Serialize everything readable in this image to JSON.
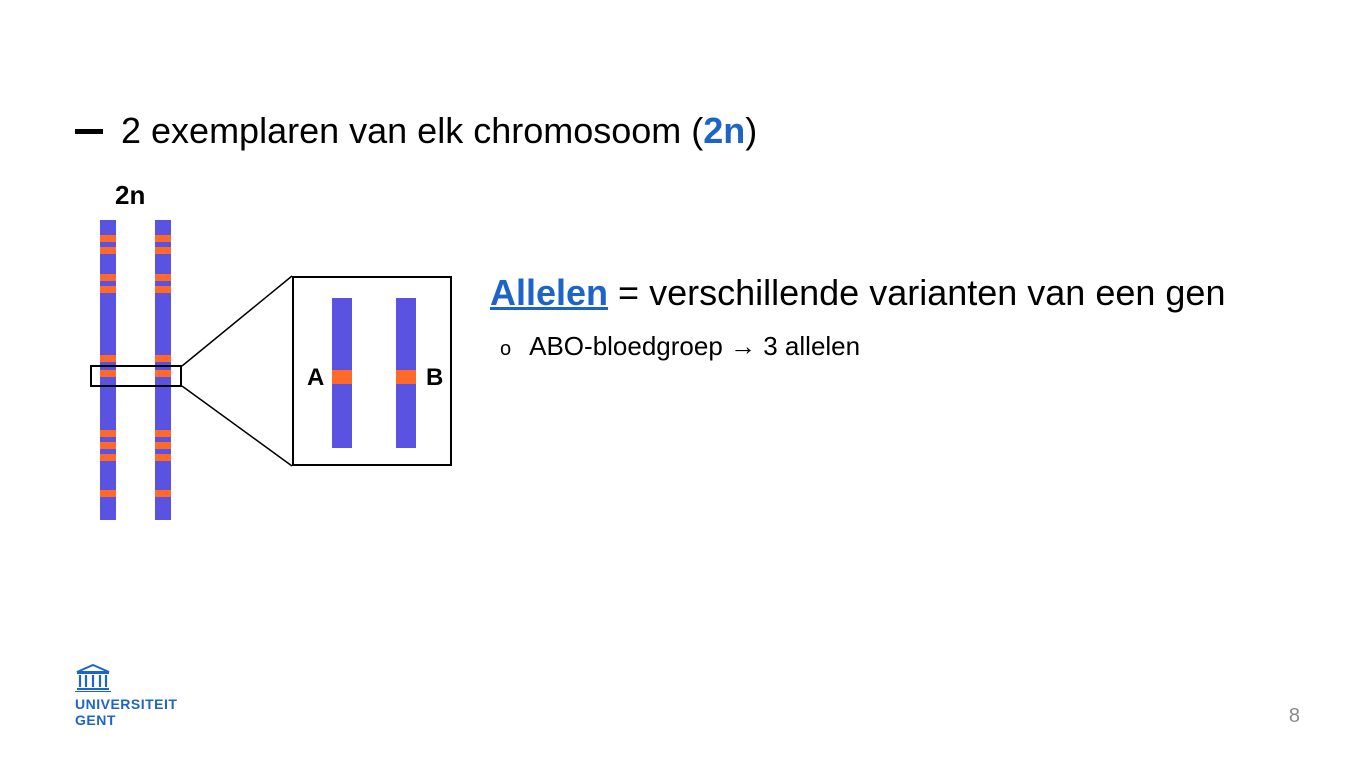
{
  "colors": {
    "accent_blue": "#1e64c8",
    "chromosome_purple": "#5a52e0",
    "band_orange": "#ff6a2b",
    "text_black": "#000000",
    "page_num_grey": "#8a8a8a",
    "background": "#ffffff"
  },
  "bullet": {
    "prefix": "2 exemplaren van elk chromosoom (",
    "highlight": "2n",
    "suffix": ")"
  },
  "diagram": {
    "label_2n": "2n",
    "chromosome_bands_pct": [
      5,
      9,
      18,
      22,
      45,
      50,
      70,
      74,
      78,
      90
    ],
    "highlight_band_index": 5,
    "zoom": {
      "label_A": "A",
      "label_B": "B"
    }
  },
  "definition": {
    "term": "Allelen",
    "rest": " = verschillende varianten van een gen",
    "sub_marker": "o",
    "sub_text": "ABO-bloedgroep → 3 allelen"
  },
  "logo": {
    "line1": "UNIVERSITEIT",
    "line2": "GENT"
  },
  "page_number": "8"
}
